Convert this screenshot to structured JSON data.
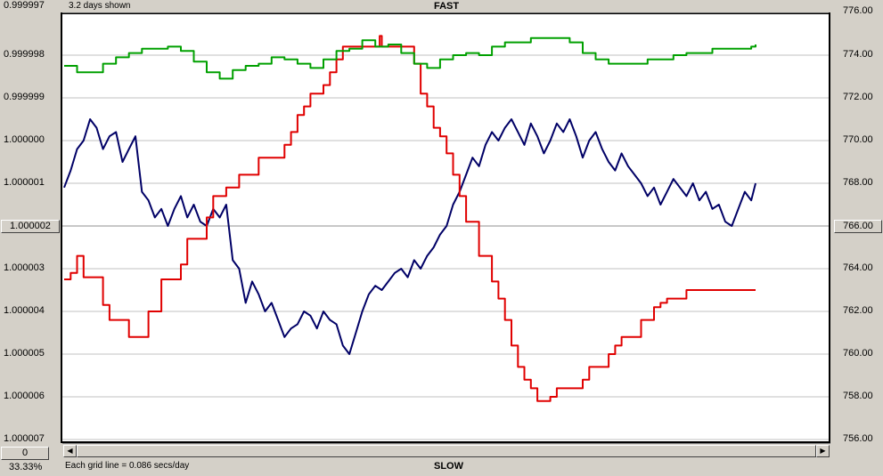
{
  "header": {
    "days_shown": "3.2 days shown",
    "top_label": "FAST"
  },
  "footer": {
    "grid_note": "Each grid line = 0.086 secs/day",
    "bottom_label": "SLOW",
    "counter_value": "0",
    "percent": "33.33%"
  },
  "axes": {
    "left_ticks": [
      "0.999997",
      "0.999998",
      "0.999999",
      "1.000000",
      "1.000001",
      "1.000002",
      "1.000003",
      "1.000004",
      "1.000005",
      "1.000006",
      "1.000007"
    ],
    "right_ticks": [
      "776.00",
      "774.00",
      "772.00",
      "770.00",
      "768.00",
      "766.00",
      "764.00",
      "762.00",
      "760.00",
      "758.00",
      "756.00"
    ],
    "left_highlight": "1.000002",
    "right_highlight": "766.00"
  },
  "colors": {
    "grid": "#c0c0c0",
    "navy_series": "#000066",
    "red_series": "#e00000",
    "green_series": "#00a000"
  },
  "chart_data": {
    "type": "line",
    "title": "",
    "xlabel": "",
    "ylabel": "",
    "x_range_days": 3.2,
    "left_axis": {
      "ylim": [
        0.999997,
        1.000007
      ],
      "inverted": true
    },
    "right_axis": {
      "ylim": [
        756,
        776
      ]
    },
    "grid": true,
    "series": [
      {
        "axis": "left",
        "color": "navy",
        "x": [
          0,
          0.03,
          0.06,
          0.09,
          0.12,
          0.15,
          0.18,
          0.21,
          0.24,
          0.27,
          0.3,
          0.33,
          0.36,
          0.39,
          0.42,
          0.45,
          0.48,
          0.51,
          0.54,
          0.57,
          0.6,
          0.63,
          0.66,
          0.69,
          0.72,
          0.75,
          0.78,
          0.81,
          0.84,
          0.87,
          0.9,
          0.93,
          0.96,
          0.99,
          1.02,
          1.05,
          1.08,
          1.11,
          1.14,
          1.17,
          1.2,
          1.23,
          1.26,
          1.29,
          1.32,
          1.35,
          1.38,
          1.41,
          1.44,
          1.47,
          1.5,
          1.53,
          1.56,
          1.59,
          1.62,
          1.65,
          1.68,
          1.71,
          1.74,
          1.77,
          1.8,
          1.83,
          1.86,
          1.89,
          1.92,
          1.95,
          1.98,
          2.01,
          2.04,
          2.07,
          2.1,
          2.13,
          2.16,
          2.19,
          2.22,
          2.25,
          2.28,
          2.31,
          2.34,
          2.37,
          2.4,
          2.43,
          2.46,
          2.49,
          2.52,
          2.55,
          2.58,
          2.61,
          2.64,
          2.67,
          2.7,
          2.73,
          2.76,
          2.79,
          2.82,
          2.85,
          2.88,
          2.91,
          2.94,
          2.97,
          3.0,
          3.03,
          3.06,
          3.09,
          3.12,
          3.15,
          3.18,
          3.2
        ],
        "values": [
          1.0000011,
          1.0000007,
          1.0000002,
          1.0,
          0.9999995,
          0.9999997,
          1.0000002,
          0.9999999,
          0.9999998,
          1.0000005,
          1.0000002,
          0.9999999,
          1.0000012,
          1.0000014,
          1.0000018,
          1.0000016,
          1.000002,
          1.0000016,
          1.0000013,
          1.0000018,
          1.0000015,
          1.0000019,
          1.000002,
          1.0000016,
          1.0000018,
          1.0000015,
          1.0000028,
          1.000003,
          1.0000038,
          1.0000033,
          1.0000036,
          1.000004,
          1.0000038,
          1.0000042,
          1.0000046,
          1.0000044,
          1.0000043,
          1.000004,
          1.0000041,
          1.0000044,
          1.000004,
          1.0000042,
          1.0000043,
          1.0000048,
          1.000005,
          1.0000045,
          1.000004,
          1.0000036,
          1.0000034,
          1.0000035,
          1.0000033,
          1.0000031,
          1.000003,
          1.0000032,
          1.0000028,
          1.000003,
          1.0000027,
          1.0000025,
          1.0000022,
          1.000002,
          1.0000015,
          1.0000012,
          1.0000008,
          1.0000004,
          1.0000006,
          1.0000001,
          0.9999998,
          1.0,
          0.9999997,
          0.9999995,
          0.9999998,
          1.0000001,
          0.9999996,
          0.9999999,
          1.0000003,
          1.0,
          0.9999996,
          0.9999998,
          0.9999995,
          0.9999999,
          1.0000004,
          1.0,
          0.9999998,
          1.0000002,
          1.0000005,
          1.0000007,
          1.0000003,
          1.0000006,
          1.0000008,
          1.000001,
          1.0000013,
          1.0000011,
          1.0000015,
          1.0000012,
          1.0000009,
          1.0000011,
          1.0000013,
          1.000001,
          1.0000014,
          1.0000012,
          1.0000016,
          1.0000015,
          1.0000019,
          1.000002,
          1.0000016,
          1.0000012,
          1.0000014,
          1.000001
        ]
      },
      {
        "axis": "right",
        "color": "red",
        "x": [
          0,
          0.03,
          0.06,
          0.09,
          0.12,
          0.18,
          0.21,
          0.27,
          0.3,
          0.39,
          0.42,
          0.45,
          0.51,
          0.54,
          0.57,
          0.63,
          0.66,
          0.69,
          0.75,
          0.81,
          0.84,
          0.9,
          0.99,
          1.02,
          1.05,
          1.08,
          1.11,
          1.14,
          1.2,
          1.23,
          1.26,
          1.29,
          1.32,
          1.35,
          1.38,
          1.41,
          1.44,
          1.46,
          1.47,
          1.49,
          1.5,
          1.53,
          1.56,
          1.59,
          1.62,
          1.65,
          1.68,
          1.71,
          1.74,
          1.77,
          1.8,
          1.83,
          1.86,
          1.89,
          1.92,
          1.95,
          1.98,
          2.01,
          2.04,
          2.07,
          2.1,
          2.13,
          2.16,
          2.19,
          2.22,
          2.25,
          2.28,
          2.31,
          2.4,
          2.43,
          2.52,
          2.55,
          2.58,
          2.64,
          2.67,
          2.73,
          2.76,
          2.79,
          2.82,
          2.88,
          2.91,
          2.94,
          3.03,
          3.06,
          3.09,
          3.15,
          3.18,
          3.2
        ],
        "values": [
          763.5,
          763.8,
          764.6,
          763.6,
          763.6,
          762.3,
          761.6,
          761.6,
          760.8,
          762.0,
          762.0,
          763.5,
          763.5,
          764.2,
          765.4,
          765.4,
          766.4,
          767.4,
          767.8,
          768.4,
          768.4,
          769.2,
          769.2,
          769.8,
          770.4,
          771.2,
          771.6,
          772.2,
          772.6,
          773.2,
          773.8,
          774.4,
          774.4,
          774.4,
          774.4,
          774.4,
          774.4,
          774.9,
          774.4,
          774.4,
          774.4,
          774.4,
          774.4,
          774.4,
          773.6,
          772.2,
          771.6,
          770.6,
          770.2,
          769.4,
          768.4,
          767.4,
          766.2,
          766.2,
          764.6,
          764.6,
          763.4,
          762.6,
          761.6,
          760.4,
          759.4,
          758.8,
          758.4,
          757.8,
          757.8,
          758.0,
          758.4,
          758.4,
          758.8,
          759.4,
          760.0,
          760.4,
          760.8,
          760.8,
          761.6,
          762.2,
          762.4,
          762.6,
          762.6,
          763.0,
          763.0,
          763.0,
          763.0,
          763.0,
          763.0,
          763.0,
          763.0,
          763.0
        ]
      },
      {
        "axis": "right",
        "color": "green",
        "x": [
          0,
          0.06,
          0.12,
          0.18,
          0.24,
          0.3,
          0.36,
          0.42,
          0.48,
          0.54,
          0.6,
          0.66,
          0.72,
          0.78,
          0.84,
          0.9,
          0.96,
          1.02,
          1.08,
          1.14,
          1.2,
          1.26,
          1.32,
          1.38,
          1.44,
          1.5,
          1.56,
          1.62,
          1.68,
          1.74,
          1.8,
          1.86,
          1.92,
          1.98,
          2.04,
          2.1,
          2.16,
          2.22,
          2.28,
          2.34,
          2.4,
          2.46,
          2.52,
          2.58,
          2.64,
          2.7,
          2.76,
          2.82,
          2.88,
          2.94,
          3.0,
          3.06,
          3.12,
          3.18,
          3.2
        ],
        "values": [
          773.5,
          773.2,
          773.2,
          773.6,
          773.9,
          774.1,
          774.3,
          774.3,
          774.4,
          774.2,
          773.7,
          773.2,
          772.9,
          773.3,
          773.5,
          773.6,
          773.9,
          773.8,
          773.6,
          773.4,
          773.8,
          774.2,
          774.3,
          774.7,
          774.4,
          774.5,
          774.1,
          773.6,
          773.4,
          773.8,
          774.0,
          774.1,
          774.0,
          774.4,
          774.6,
          774.6,
          774.8,
          774.8,
          774.8,
          774.6,
          774.1,
          773.8,
          773.6,
          773.6,
          773.6,
          773.8,
          773.8,
          774.0,
          774.1,
          774.1,
          774.3,
          774.3,
          774.3,
          774.4,
          774.5
        ]
      }
    ]
  }
}
